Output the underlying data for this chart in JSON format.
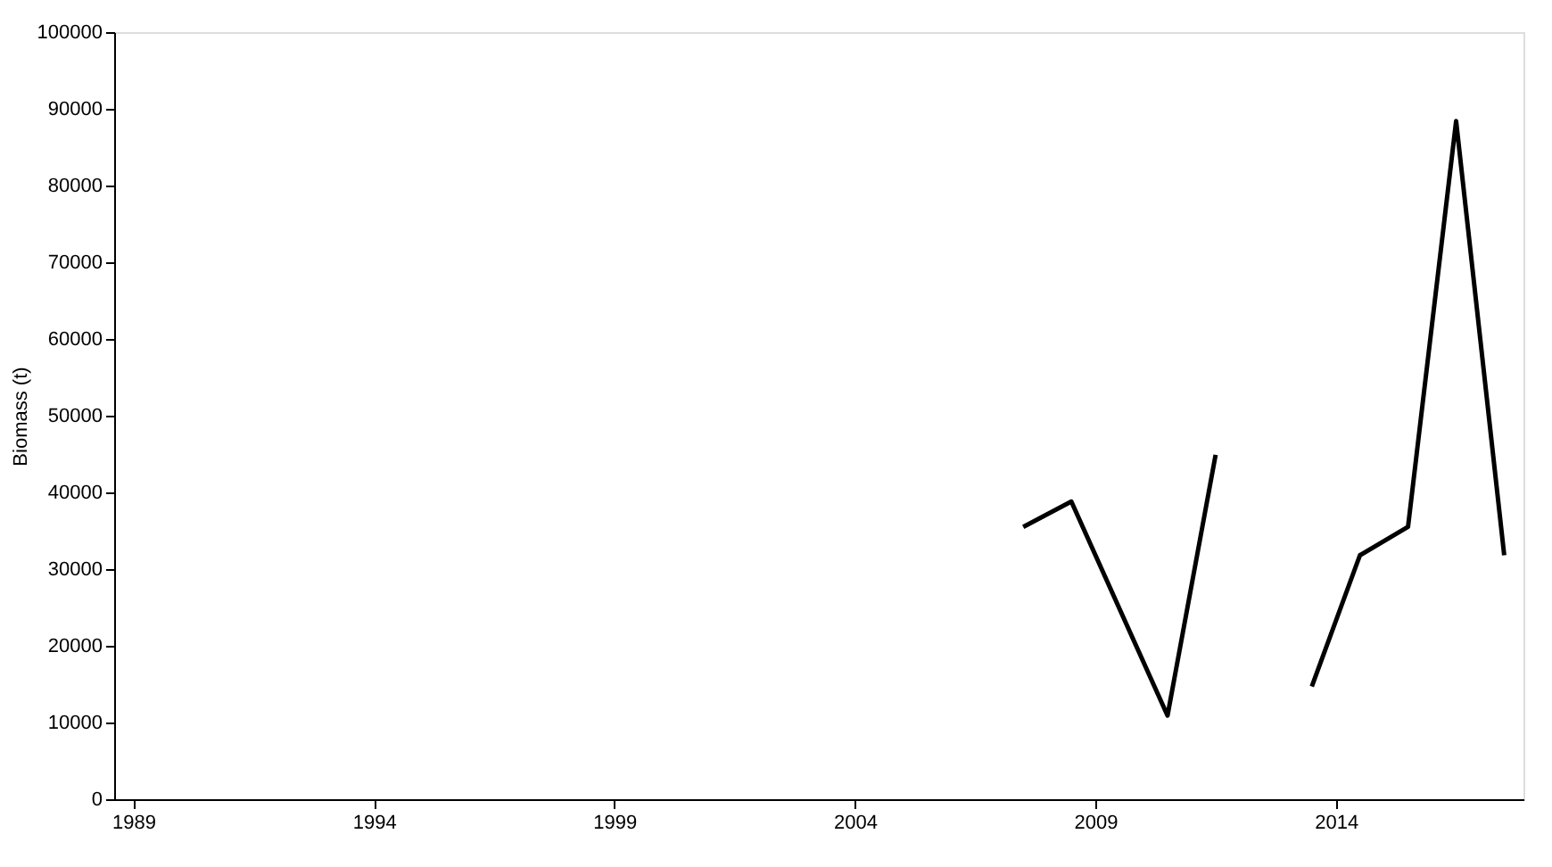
{
  "chart_data": {
    "type": "line",
    "ylabel": "Biomass (t)",
    "x": [
      2007.5,
      2008.5,
      2010.5,
      2011.5,
      2012.5,
      2013.5,
      2014.5,
      2015.5,
      2016.5,
      2017.5
    ],
    "series": [
      {
        "color": "#000000",
        "values": [
          35500,
          38800,
          10900,
          44900,
          null,
          14700,
          31800,
          35500,
          88400,
          31800
        ]
      }
    ],
    "xlim": [
      1988.6,
      2017.9
    ],
    "xticks": [
      1989,
      1994,
      1999,
      2004,
      2009,
      2014
    ],
    "ylim": [
      0,
      100000
    ],
    "yticks": [
      0,
      10000,
      20000,
      30000,
      40000,
      50000,
      60000,
      70000,
      80000,
      90000,
      100000
    ],
    "grid": false,
    "legend": false,
    "marker": "none",
    "line_style": "solid"
  }
}
